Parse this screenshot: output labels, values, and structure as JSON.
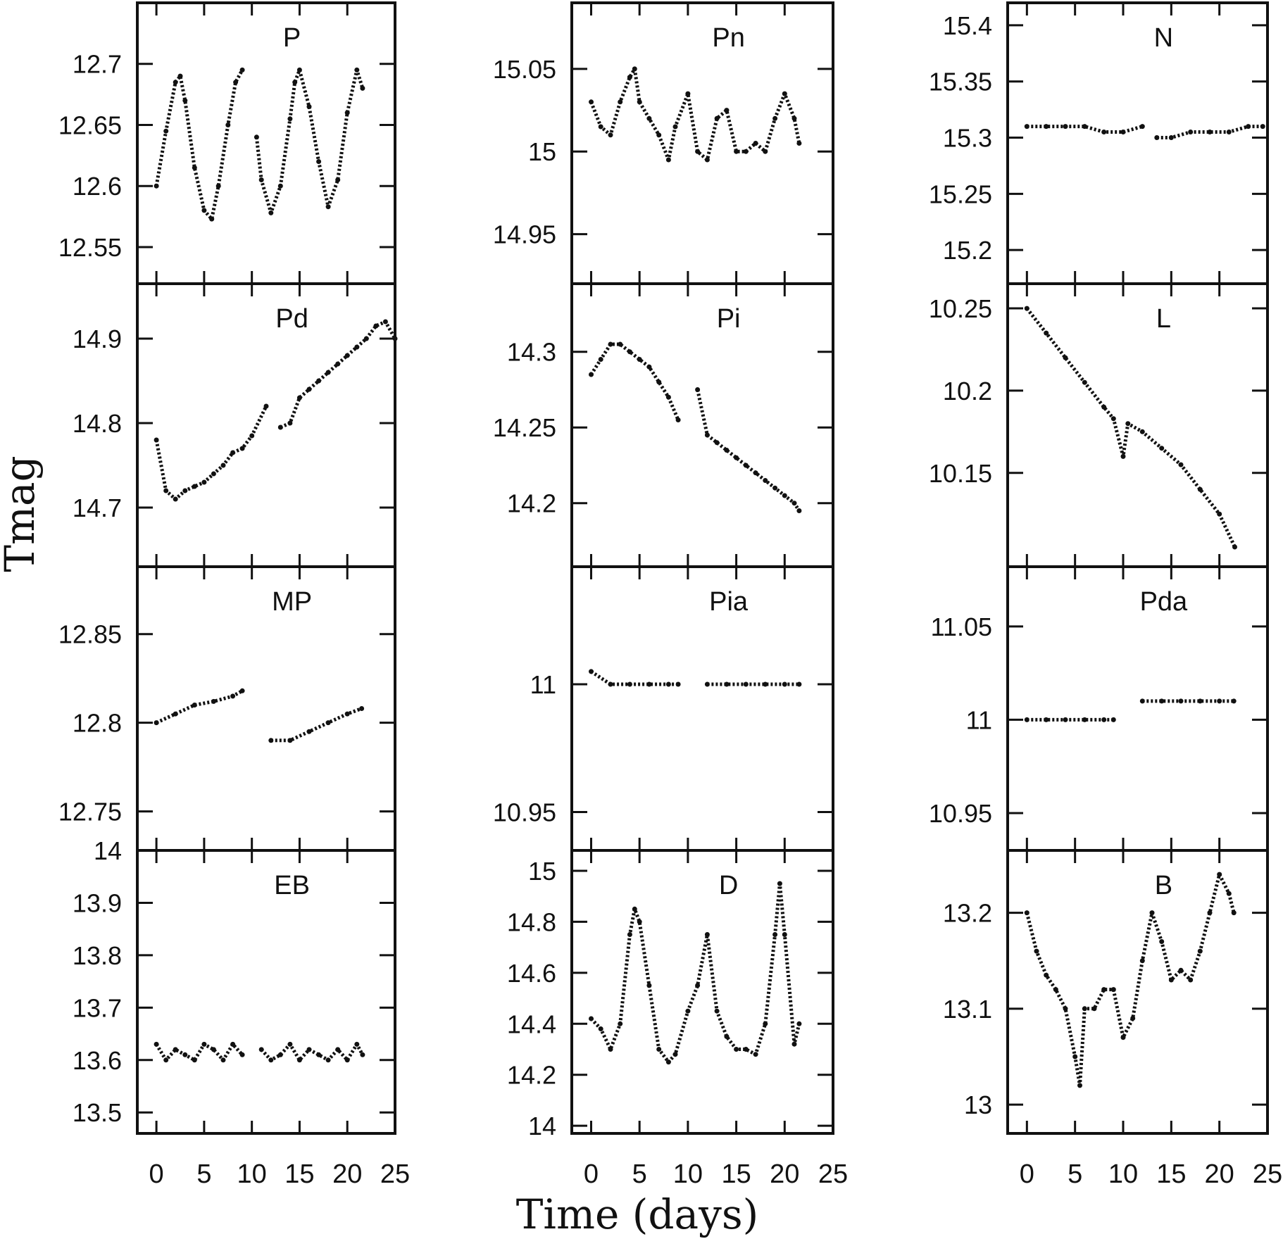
{
  "figure": {
    "ylabel": "Tmag",
    "xlabel": "Time (days)",
    "x_ticks": [
      "0",
      "5",
      "10",
      "15",
      "20",
      "25"
    ]
  },
  "chart_data": [
    {
      "type": "scatter",
      "label": "P",
      "xlim": [
        -2,
        25
      ],
      "ylim": [
        12.75,
        12.52
      ],
      "y_ticks": [
        "12.55",
        "12.6",
        "12.65",
        "12.7"
      ],
      "y_tick_values": [
        12.55,
        12.6,
        12.65,
        12.7
      ],
      "series": [
        {
          "x": [
            0,
            1,
            2,
            2.5,
            3,
            4,
            5,
            5.8,
            6.5,
            7.5,
            8.3,
            9,
            10,
            10.5,
            11,
            12,
            13,
            14,
            14.5,
            15,
            16,
            17,
            18,
            19,
            20,
            21,
            21.6
          ],
          "y": [
            12.6,
            12.645,
            12.685,
            12.69,
            12.67,
            12.615,
            12.58,
            12.573,
            12.6,
            12.65,
            12.685,
            12.695,
            null,
            12.64,
            12.605,
            12.578,
            12.6,
            12.655,
            12.685,
            12.695,
            12.665,
            12.62,
            12.583,
            12.605,
            12.66,
            12.695,
            12.68
          ]
        }
      ]
    },
    {
      "type": "scatter",
      "label": "Pn",
      "xlim": [
        -2,
        25
      ],
      "ylim": [
        15.09,
        14.92
      ],
      "y_ticks": [
        "14.95",
        "15",
        "15.05"
      ],
      "y_tick_values": [
        14.95,
        15,
        15.05
      ],
      "series": [
        {
          "x": [
            0,
            1,
            2,
            3,
            4,
            4.5,
            5,
            6,
            7,
            8,
            8.7,
            10,
            11,
            12,
            13,
            14,
            15,
            16,
            17,
            18,
            19,
            20,
            21,
            21.5
          ],
          "y": [
            15.03,
            15.015,
            15.01,
            15.03,
            15.045,
            15.05,
            15.03,
            15.02,
            15.01,
            14.995,
            15.015,
            15.035,
            15.0,
            14.995,
            15.02,
            15.025,
            15.0,
            15.0,
            15.005,
            15.0,
            15.02,
            15.035,
            15.02,
            15.005
          ]
        }
      ]
    },
    {
      "type": "scatter",
      "label": "N",
      "xlim": [
        -2,
        25
      ],
      "ylim": [
        15.42,
        15.17
      ],
      "y_ticks": [
        "15.2",
        "15.25",
        "15.3",
        "15.35",
        "15.4"
      ],
      "y_tick_values": [
        15.2,
        15.25,
        15.3,
        15.35,
        15.4
      ],
      "series": [
        {
          "x": [
            0,
            2,
            4,
            6,
            8,
            10,
            12,
            12.5,
            13.5,
            15,
            17,
            19,
            21,
            23,
            24.5
          ],
          "y": [
            15.31,
            15.31,
            15.31,
            15.31,
            15.305,
            15.305,
            15.31,
            null,
            15.3,
            15.3,
            15.305,
            15.305,
            15.305,
            15.31,
            15.31
          ]
        }
      ]
    },
    {
      "type": "scatter",
      "label": "Pd",
      "xlim": [
        -2,
        25
      ],
      "ylim": [
        14.965,
        14.63
      ],
      "y_ticks": [
        "14.7",
        "14.8",
        "14.9"
      ],
      "y_tick_values": [
        14.7,
        14.8,
        14.9
      ],
      "series": [
        {
          "x": [
            0,
            1,
            2,
            3,
            4,
            5,
            6,
            7,
            8,
            9,
            10,
            11.5,
            12.5,
            13,
            14,
            15,
            16,
            17,
            18,
            19,
            20,
            21,
            22,
            23,
            24,
            25
          ],
          "y": [
            14.78,
            14.72,
            14.71,
            14.72,
            14.725,
            14.73,
            14.74,
            14.75,
            14.765,
            14.77,
            14.785,
            14.82,
            null,
            14.795,
            14.8,
            14.83,
            14.84,
            14.85,
            14.86,
            14.87,
            14.88,
            14.89,
            14.9,
            14.915,
            14.92,
            14.9
          ]
        }
      ]
    },
    {
      "type": "scatter",
      "label": "Pi",
      "xlim": [
        -2,
        25
      ],
      "ylim": [
        14.345,
        14.158
      ],
      "y_ticks": [
        "14.2",
        "14.25",
        "14.3"
      ],
      "y_tick_values": [
        14.2,
        14.25,
        14.3
      ],
      "series": [
        {
          "x": [
            0,
            1,
            2,
            3,
            4,
            5,
            6,
            7,
            8,
            9,
            10,
            11,
            12,
            13,
            14,
            15,
            16,
            17,
            18,
            19,
            20,
            21,
            21.5
          ],
          "y": [
            14.285,
            14.295,
            14.305,
            14.305,
            14.3,
            14.295,
            14.29,
            14.28,
            14.27,
            14.255,
            null,
            14.275,
            14.245,
            14.24,
            14.235,
            14.23,
            14.225,
            14.22,
            14.215,
            14.21,
            14.205,
            14.2,
            14.195
          ]
        }
      ]
    },
    {
      "type": "scatter",
      "label": "L",
      "xlim": [
        -2,
        25
      ],
      "ylim": [
        10.265,
        10.093
      ],
      "y_ticks": [
        "10.15",
        "10.2",
        "10.25"
      ],
      "y_tick_values": [
        10.15,
        10.2,
        10.25
      ],
      "series": [
        {
          "x": [
            0,
            2,
            4,
            6,
            8,
            9,
            10,
            10.5,
            12,
            14,
            16,
            18,
            20,
            21.6
          ],
          "y": [
            10.25,
            10.235,
            10.22,
            10.205,
            10.19,
            10.183,
            10.16,
            10.18,
            10.175,
            10.165,
            10.155,
            10.14,
            10.125,
            10.105
          ]
        }
      ]
    },
    {
      "type": "scatter",
      "label": "MP",
      "xlim": [
        -2,
        25
      ],
      "ylim": [
        12.888,
        12.728
      ],
      "y_ticks": [
        "12.75",
        "12.8",
        "12.85"
      ],
      "y_tick_values": [
        12.75,
        12.8,
        12.85
      ],
      "series": [
        {
          "x": [
            0,
            2,
            4,
            6,
            8,
            9,
            10,
            12,
            14,
            16,
            18,
            20,
            21.5
          ],
          "y": [
            12.8,
            12.805,
            12.81,
            12.812,
            12.815,
            12.818,
            null,
            12.79,
            12.79,
            12.795,
            12.8,
            12.805,
            12.808
          ]
        }
      ]
    },
    {
      "type": "scatter",
      "label": "Pia",
      "xlim": [
        -2,
        25
      ],
      "ylim": [
        11.046,
        10.935
      ],
      "y_ticks": [
        "10.95",
        "11"
      ],
      "y_tick_values": [
        10.95,
        11
      ],
      "series": [
        {
          "x": [
            0,
            2,
            4,
            6,
            8,
            9,
            10,
            12,
            14,
            16,
            18,
            20,
            21.5
          ],
          "y": [
            11.005,
            11.0,
            11.0,
            11.0,
            11.0,
            11.0,
            null,
            11.0,
            11.0,
            11.0,
            11.0,
            11.0,
            11.0
          ]
        }
      ]
    },
    {
      "type": "scatter",
      "label": "Pda",
      "xlim": [
        -2,
        25
      ],
      "ylim": [
        11.082,
        10.93
      ],
      "y_ticks": [
        "10.95",
        "11",
        "11.05"
      ],
      "y_tick_values": [
        10.95,
        11,
        11.05
      ],
      "series": [
        {
          "x": [
            0,
            2,
            4,
            6,
            8,
            9,
            10,
            12,
            14,
            16,
            18,
            20,
            21.5
          ],
          "y": [
            11.0,
            11.0,
            11.0,
            11.0,
            11.0,
            11.0,
            null,
            11.01,
            11.01,
            11.01,
            11.01,
            11.01,
            11.01
          ]
        }
      ]
    },
    {
      "type": "scatter",
      "label": "EB",
      "xlim": [
        -2,
        25
      ],
      "ylim": [
        14.0,
        13.46
      ],
      "y_ticks": [
        "13.5",
        "13.6",
        "13.7",
        "13.8",
        "13.9",
        "14"
      ],
      "y_tick_values": [
        13.5,
        13.6,
        13.7,
        13.8,
        13.9,
        14.0
      ],
      "series": [
        {
          "x": [
            0,
            1,
            2,
            3,
            4,
            5,
            6,
            7,
            8,
            9,
            10,
            11,
            12,
            13,
            14,
            15,
            16,
            17,
            18,
            19,
            20,
            21,
            21.6
          ],
          "y": [
            13.63,
            13.6,
            13.62,
            13.61,
            13.6,
            13.63,
            13.62,
            13.6,
            13.63,
            13.61,
            null,
            13.62,
            13.6,
            13.61,
            13.63,
            13.6,
            13.62,
            13.61,
            13.6,
            13.62,
            13.6,
            13.63,
            13.61
          ]
        }
      ]
    },
    {
      "type": "scatter",
      "label": "D",
      "xlim": [
        -2,
        25
      ],
      "ylim": [
        15.08,
        13.97
      ],
      "y_ticks": [
        "14",
        "14.2",
        "14.4",
        "14.6",
        "14.8",
        "15"
      ],
      "y_tick_values": [
        14,
        14.2,
        14.4,
        14.6,
        14.8,
        15
      ],
      "series": [
        {
          "x": [
            0,
            1,
            2,
            3,
            4,
            4.5,
            5,
            6,
            7,
            8,
            8.7,
            10,
            11,
            12,
            13,
            14,
            15,
            16,
            17,
            18,
            19,
            19.5,
            20,
            21,
            21.5
          ],
          "y": [
            14.42,
            14.38,
            14.3,
            14.4,
            14.75,
            14.85,
            14.8,
            14.55,
            14.3,
            14.25,
            14.28,
            14.45,
            14.55,
            14.75,
            14.45,
            14.35,
            14.3,
            14.3,
            14.28,
            14.4,
            14.75,
            14.95,
            14.75,
            14.32,
            14.4
          ]
        }
      ]
    },
    {
      "type": "scatter",
      "label": "B",
      "xlim": [
        -2,
        25
      ],
      "ylim": [
        13.265,
        12.97
      ],
      "y_ticks": [
        "13",
        "13.1",
        "13.2"
      ],
      "y_tick_values": [
        13.0,
        13.1,
        13.2
      ],
      "series": [
        {
          "x": [
            0,
            1,
            2,
            3,
            4,
            5,
            5.5,
            6,
            7,
            8,
            9,
            10,
            11,
            12,
            13,
            14,
            15,
            16,
            17,
            18,
            19,
            20,
            21,
            21.5
          ],
          "y": [
            13.2,
            13.16,
            13.135,
            13.12,
            13.1,
            13.05,
            13.02,
            13.1,
            13.1,
            13.12,
            13.12,
            13.07,
            13.09,
            13.15,
            13.2,
            13.17,
            13.13,
            13.14,
            13.13,
            13.16,
            13.2,
            13.24,
            13.22,
            13.2
          ]
        }
      ]
    }
  ]
}
